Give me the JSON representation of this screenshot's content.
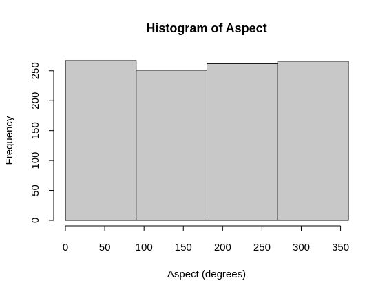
{
  "chart_data": {
    "type": "bar",
    "title": "Histogram of Aspect",
    "xlabel": "Aspect (degrees)",
    "ylabel": "Frequency",
    "bins": [
      {
        "start": 0,
        "end": 90,
        "value": 267
      },
      {
        "start": 90,
        "end": 180,
        "value": 251
      },
      {
        "start": 180,
        "end": 270,
        "value": 262
      },
      {
        "start": 270,
        "end": 360,
        "value": 266
      }
    ],
    "xlim": [
      0,
      360
    ],
    "ylim": [
      0,
      267
    ],
    "xticks": [
      0,
      50,
      100,
      150,
      200,
      250,
      300,
      350
    ],
    "yticks": [
      0,
      50,
      100,
      150,
      200,
      250
    ],
    "grid": false,
    "colors": {
      "bar_fill": "#c8c8c8",
      "bar_stroke": "#000000"
    }
  }
}
